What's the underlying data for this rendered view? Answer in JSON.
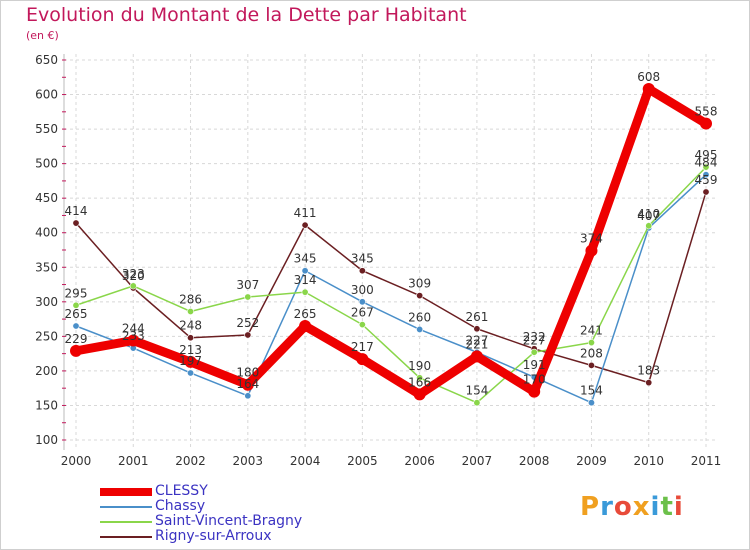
{
  "title": "Evolution du Montant de la Dette par Habitant",
  "unit": "(en €)",
  "logo_text": "Proxiti",
  "chart_data": {
    "type": "line",
    "title": "Evolution du Montant de la Dette par Habitant",
    "ylabel": "(en €)",
    "xlabel": "",
    "x": [
      "2000",
      "2001",
      "2002",
      "2003",
      "2004",
      "2005",
      "2006",
      "2007",
      "2008",
      "2009",
      "2010",
      "2011"
    ],
    "ylim": [
      100,
      650
    ],
    "yticks": [
      100,
      150,
      200,
      250,
      300,
      350,
      400,
      450,
      500,
      550,
      600,
      650
    ],
    "grid": true,
    "legend_position": "bottom-left",
    "series": [
      {
        "name": "CLESSY",
        "color": "#ee0000",
        "values": [
          229,
          244,
          213,
          180,
          265,
          217,
          166,
          221,
          170,
          374,
          608,
          558
        ]
      },
      {
        "name": "Chassy",
        "color": "#4a8fc9",
        "values": [
          265,
          233,
          197,
          164,
          345,
          300,
          260,
          227,
          191,
          154,
          407,
          484
        ]
      },
      {
        "name": "Saint-Vincent-Bragny",
        "color": "#8ad64a",
        "values": [
          295,
          323,
          286,
          307,
          314,
          267,
          190,
          154,
          227,
          241,
          410,
          495
        ]
      },
      {
        "name": "Rigny-sur-Arroux",
        "color": "#6b1f22",
        "values": [
          414,
          320,
          248,
          252,
          411,
          345,
          309,
          261,
          232,
          208,
          183,
          459
        ]
      }
    ]
  }
}
